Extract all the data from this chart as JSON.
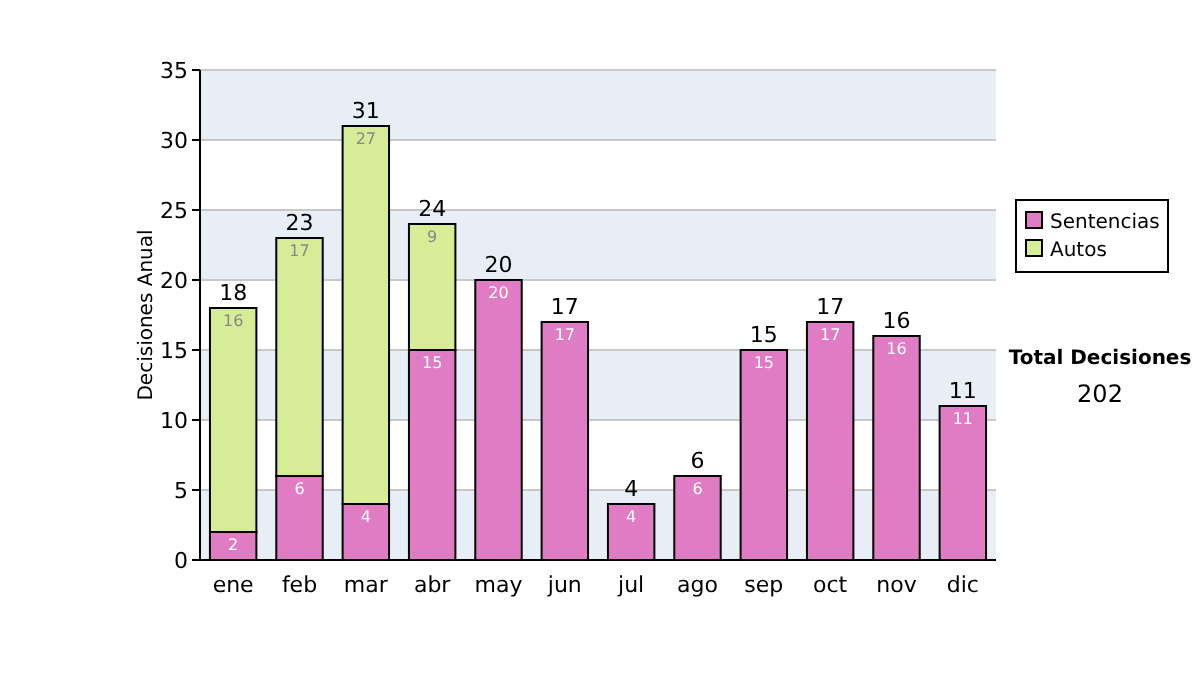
{
  "chart_data": {
    "type": "bar",
    "stacked": true,
    "ylabel": "Decisiones Anual",
    "categories": [
      "ene",
      "feb",
      "mar",
      "abr",
      "may",
      "jun",
      "jul",
      "ago",
      "sep",
      "oct",
      "nov",
      "dic"
    ],
    "series": [
      {
        "name": "Sentencias",
        "color": "#e07cc4",
        "values": [
          2,
          6,
          4,
          15,
          20,
          17,
          4,
          6,
          15,
          17,
          16,
          11
        ]
      },
      {
        "name": "Autos",
        "color": "#d6ec96",
        "values": [
          16,
          17,
          27,
          9,
          null,
          null,
          null,
          null,
          null,
          null,
          null,
          null
        ]
      }
    ],
    "totals": [
      "18",
      "23",
      "31",
      "24",
      "20",
      "17",
      "4",
      "6",
      "15",
      "17",
      "16",
      "11"
    ],
    "data_labels": true,
    "ylim": [
      0,
      35
    ],
    "yticks": [
      0,
      5,
      10,
      15,
      20,
      25,
      30,
      35
    ],
    "grid": "y",
    "legend": "right",
    "annotations": [
      "Total Decisiones",
      "202"
    ]
  }
}
